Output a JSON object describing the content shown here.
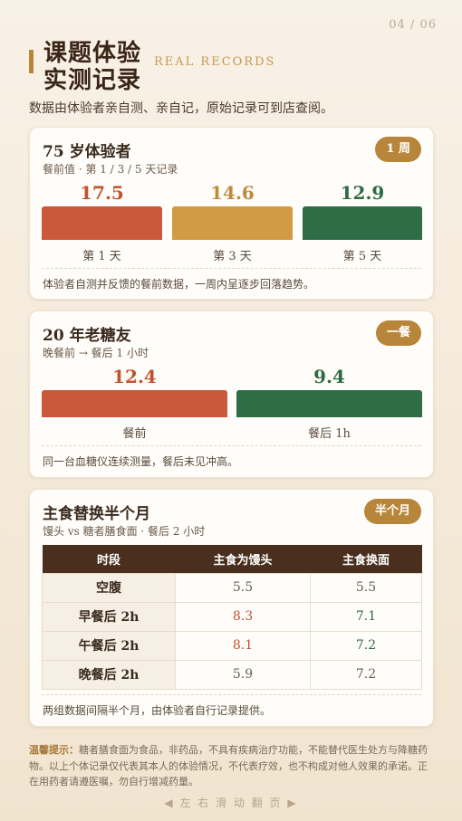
{
  "header": {
    "page": "04 / 06",
    "title_lines": [
      "课题体验",
      "实测记录"
    ],
    "tag": "REAL RECORDS",
    "subtitle": "数据由体验者亲自测、亲自记，原始记录可到店查阅。"
  },
  "cards": [
    {
      "title": "75 岁体验者",
      "subtitle": "餐前值 · 第 1 / 3 / 5 天记录",
      "badge": "1 周",
      "items": [
        {
          "value": 17.5,
          "label": "第 1 天"
        },
        {
          "value": 14.6,
          "label": "第 3 天"
        },
        {
          "value": 12.9,
          "label": "第 5 天"
        }
      ],
      "note": "体验者自测并反馈的餐前数据，一周内呈逐步回落趋势。"
    },
    {
      "title": "20 年老糖友",
      "subtitle": "晚餐前 → 餐后 1 小时",
      "badge": "一餐",
      "items": [
        {
          "value": 12.4,
          "label": "餐前"
        },
        {
          "value": 9.4,
          "label": "餐后 1h"
        }
      ],
      "note": "同一台血糖仪连续测量，餐后未见冲高。"
    },
    {
      "title": "主食替换半个月",
      "subtitle": "馒头 vs 糖者膳食面 · 餐后 2 小时",
      "badge": "半个月",
      "table": {
        "headers": [
          "时段",
          "主食为馒头",
          "主食换面"
        ],
        "rows": [
          [
            "空腹",
            5.5,
            5.5
          ],
          [
            "早餐后 2h",
            8.3,
            7.1
          ],
          [
            "午餐后 2h",
            8.1,
            7.2
          ],
          [
            "晚餐后 2h",
            5.9,
            7.2
          ]
        ]
      },
      "note": "两组数据间隔半个月，由体验者自行记录提供。"
    }
  ],
  "disclaimer": {
    "label": "温馨提示：",
    "text": "糖者膳食面为食品，非药品，不具有疾病治疗功能，不能替代医生处方与降糖药物。以上个体记录仅代表其本人的体验情况，不代表疗效，也不构成对他人效果的承诺。正在用药者请遵医嘱，勿自行增减药量。"
  },
  "footer": "◀ 左 右 滑 动 翻 页 ▶"
}
